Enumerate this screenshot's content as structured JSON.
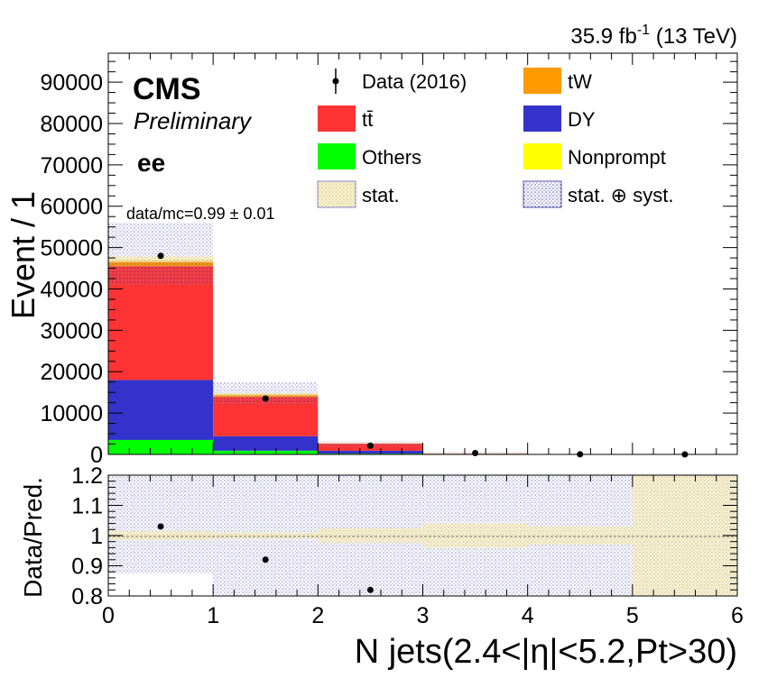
{
  "header": {
    "lumi_value": "35.9 fb",
    "lumi_exp": "-1",
    "energy": " (13 TeV)"
  },
  "labels": {
    "cms": "CMS",
    "preliminary": "Preliminary",
    "channel": "ee",
    "ratio_prefix": "data/mc=0.99 ",
    "ratio_pm": "±",
    "ratio_err": " 0.01",
    "ylabel_top": "Event / 1",
    "ylabel_bottom": "Data/Pred.",
    "xlabel": "N jets(2.4<|η|<5.2,Pt>30)"
  },
  "legend": [
    {
      "key": "data",
      "label": "Data (2016)",
      "kind": "marker"
    },
    {
      "key": "tw",
      "label": "tW",
      "kind": "box",
      "color": "#ff9900"
    },
    {
      "key": "tt",
      "label": "tt̄",
      "kind": "box",
      "color": "#ff3333"
    },
    {
      "key": "dy",
      "label": "DY",
      "kind": "box",
      "color": "#3333cc"
    },
    {
      "key": "others",
      "label": "Others",
      "kind": "box",
      "color": "#00ff00"
    },
    {
      "key": "nonprompt",
      "label": "Nonprompt",
      "kind": "box",
      "color": "#ffff00"
    },
    {
      "key": "stat",
      "label": "stat.",
      "kind": "statbox"
    },
    {
      "key": "syst",
      "label": "stat. ⊕ syst.",
      "kind": "systbox"
    }
  ],
  "colors": {
    "tW": "#ff9900",
    "tt": "#ff3333",
    "DY": "#3333cc",
    "Others": "#00ff00",
    "Nonprompt": "#ffff00",
    "stat": "#f0e6b4",
    "syst": "#5555aa"
  },
  "chart_data": {
    "type": "bar",
    "stacked": true,
    "bin_edges": [
      0,
      1,
      2,
      3,
      4,
      5,
      6
    ],
    "categories": [
      "0",
      "1",
      "2",
      "3",
      "4",
      "5"
    ],
    "series": [
      {
        "name": "Others",
        "values": [
          3500,
          900,
          200,
          40,
          0,
          0
        ]
      },
      {
        "name": "DY",
        "values": [
          14500,
          3500,
          700,
          60,
          0,
          0
        ]
      },
      {
        "name": "tt̄",
        "values": [
          27500,
          9500,
          1700,
          200,
          0,
          0
        ]
      },
      {
        "name": "tW",
        "values": [
          1500,
          600,
          100,
          20,
          0,
          0
        ]
      },
      {
        "name": "Nonprompt",
        "values": [
          200,
          100,
          30,
          5,
          0,
          0
        ]
      }
    ],
    "data": {
      "name": "Data (2016)",
      "x": [
        0.5,
        1.5,
        2.5,
        3.5,
        4.5,
        5.5
      ],
      "y": [
        48000,
        13500,
        2100,
        330,
        25,
        3
      ]
    },
    "syst_band": {
      "down": [
        41000,
        12000,
        1900,
        250,
        0,
        0
      ],
      "up": [
        56000,
        17500,
        3200,
        600,
        0,
        0
      ]
    },
    "stat_band": {
      "down": [
        46500,
        14300,
        2700,
        320,
        0,
        0
      ],
      "up": [
        47900,
        14900,
        2800,
        330,
        0,
        0
      ]
    },
    "ratio": {
      "x": [
        0.5,
        1.5,
        2.5
      ],
      "y": [
        1.03,
        0.92,
        0.82
      ],
      "syst_down": [
        0.875,
        0.8,
        0.8,
        0.8,
        0.8,
        0.8
      ],
      "syst_up": [
        1.2,
        1.2,
        1.2,
        1.2,
        1.2,
        1.2
      ],
      "stat_down": [
        0.985,
        0.99,
        0.975,
        0.96,
        0.97,
        0.8
      ],
      "stat_up": [
        1.015,
        1.01,
        1.025,
        1.04,
        1.03,
        1.2
      ]
    },
    "xlim": [
      0,
      6
    ],
    "ylim": [
      0,
      97000
    ],
    "ratio_ylim": [
      0.8,
      1.2
    ],
    "xticks": [
      "0",
      "1",
      "2",
      "3",
      "4",
      "5",
      "6"
    ],
    "yticks": [
      "0",
      "10000",
      "20000",
      "30000",
      "40000",
      "50000",
      "60000",
      "70000",
      "80000",
      "90000"
    ],
    "ratio_yticks": [
      "0.8",
      "0.9",
      "1",
      "1.1",
      "1.2"
    ],
    "xlabel": "N jets(2.4<|η|<5.2,Pt>30)",
    "ylabel": "Event / 1",
    "ratio_ylabel": "Data/Pred."
  }
}
